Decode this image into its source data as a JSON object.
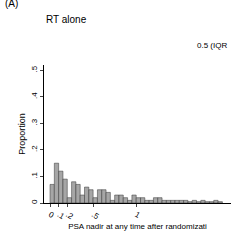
{
  "chart_data": {
    "type": "histogram",
    "title": "RT alone",
    "annotations": [
      "(A)",
      "0.5 (IQR"
    ],
    "x_label": "PSA nadir at any time after randomizati",
    "y_label": "Proportion",
    "bins": [
      0,
      0.05,
      0.1,
      0.15,
      0.2,
      0.25,
      0.3,
      0.35,
      0.4,
      0.45,
      0.5,
      0.55,
      0.6,
      0.65,
      0.7,
      0.75,
      0.8,
      0.85,
      0.9,
      0.95,
      1.0,
      1.05,
      1.1,
      1.15,
      1.2,
      1.25,
      1.3,
      1.35,
      1.4,
      1.45,
      1.5,
      1.55,
      1.6,
      1.65,
      1.7,
      1.75,
      1.8,
      1.85,
      1.9,
      1.95,
      2.0
    ],
    "values": [
      0.07,
      0.15,
      0.12,
      0.09,
      0.02,
      0.08,
      0.07,
      0.03,
      0.06,
      0.05,
      0.02,
      0.05,
      0.05,
      0.04,
      0.01,
      0.03,
      0.03,
      0.02,
      0.01,
      0.03,
      0.02,
      0.02,
      0.01,
      0.01,
      0.02,
      0.02,
      0.01,
      0.01,
      0.01,
      0.01,
      0.01,
      0.01,
      0.005,
      0.01,
      0.005,
      0.01,
      0.005,
      0.005,
      0.01,
      0.005
    ],
    "color": "#a6a6a6",
    "xlim": [
      -0.07,
      2.1
    ],
    "ylim": [
      0,
      0.52
    ],
    "xticks": [
      {
        "value": 0,
        "label": "0"
      },
      {
        "value": 0.1,
        "label": ".1"
      },
      {
        "value": 0.2,
        "label": ".2"
      },
      {
        "value": 0.5,
        "label": ".5"
      },
      {
        "value": 1,
        "label": "1"
      }
    ],
    "yticks": [
      {
        "value": 0,
        "label": "0"
      },
      {
        "value": 0.1,
        "label": ".1"
      },
      {
        "value": 0.2,
        "label": ".2"
      },
      {
        "value": 0.3,
        "label": ".3"
      },
      {
        "value": 0.4,
        "label": ".4"
      },
      {
        "value": 0.5,
        "label": ".5"
      }
    ],
    "grid": false
  }
}
